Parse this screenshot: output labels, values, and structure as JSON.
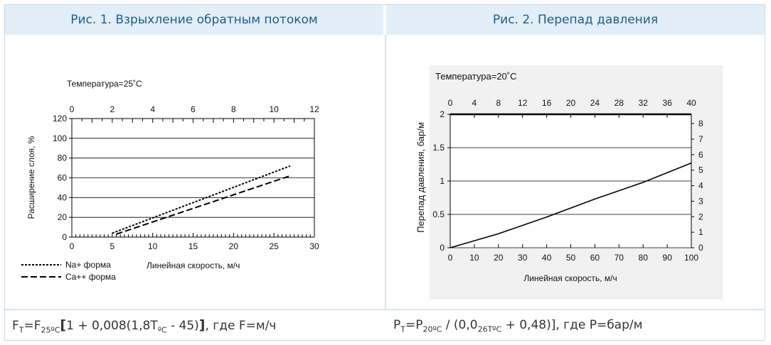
{
  "headers": {
    "left": "Рис. 1. Взрыхление обратным потоком",
    "right": "Рис. 2. Перепад давления"
  },
  "formulas": {
    "left": {
      "p1": "F",
      "s1": "T",
      "p2": "=F",
      "s2": "25ºC",
      "p3": "[",
      "p4": "1 + 0,008(1,8T",
      "s3": "ºC",
      "p5": " - 45)",
      "p6": "]",
      "p7": ", где F=м/ч"
    },
    "right": {
      "p1": "P",
      "s1": "T",
      "p2": "=P",
      "s2": "20ºC",
      "p3": " / (0,0",
      "s3": "26TºC",
      "p4": " + 0,48)], где P=бар/м"
    }
  },
  "chart_data": [
    {
      "type": "line",
      "title": "Температура=25˚C",
      "xlabel": "Линейная скорость, м/ч",
      "ylabel": "Расширение слоя, %",
      "xlim": [
        0,
        30
      ],
      "ylim": [
        0,
        120
      ],
      "x_ticks": [
        "0",
        "5",
        "10",
        "15",
        "20",
        "25",
        "30"
      ],
      "y_ticks": [
        "0",
        "20",
        "40",
        "60",
        "80",
        "100",
        "120"
      ],
      "secondary_x": {
        "lim": [
          0,
          12
        ],
        "ticks": [
          "0",
          "2",
          "4",
          "6",
          "8",
          "10",
          "12"
        ]
      },
      "grid": "horizontal",
      "legend_position": "bottom-left",
      "series": [
        {
          "name": "Na+ форма",
          "style": "dotted",
          "x": [
            5,
            27
          ],
          "y": [
            4,
            72
          ]
        },
        {
          "name": "Ca++ форма",
          "style": "dashed",
          "x": [
            5.5,
            27
          ],
          "y": [
            3,
            62
          ]
        }
      ]
    },
    {
      "type": "line",
      "title": "Температура=20˚C",
      "xlabel": "Линейная скорость, м/ч",
      "ylabel": "Перепад давления, бар/м",
      "xlim": [
        0,
        100
      ],
      "ylim": [
        0,
        2
      ],
      "x_ticks": [
        "0",
        "10",
        "20",
        "30",
        "40",
        "50",
        "60",
        "70",
        "80",
        "90",
        "100"
      ],
      "y_ticks": [
        "0",
        "0.5",
        "1",
        "1.5",
        "2"
      ],
      "secondary_x": {
        "lim": [
          0,
          40
        ],
        "ticks": [
          "0",
          "4",
          "8",
          "12",
          "16",
          "20",
          "24",
          "28",
          "32",
          "36",
          "40"
        ]
      },
      "secondary_y": {
        "lim": [
          0,
          8.6
        ],
        "ticks": [
          "0",
          "1",
          "2",
          "3",
          "4",
          "5",
          "6",
          "7",
          "8"
        ]
      },
      "grid": "horizontal",
      "series": [
        {
          "name": "",
          "style": "solid",
          "x": [
            0,
            20,
            40,
            60,
            80,
            100
          ],
          "y": [
            0,
            0.21,
            0.46,
            0.73,
            0.98,
            1.27
          ]
        }
      ]
    }
  ]
}
